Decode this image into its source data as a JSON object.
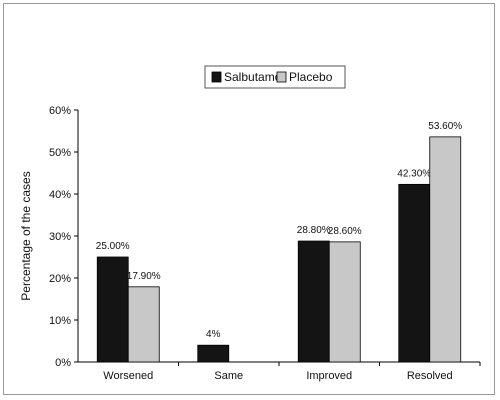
{
  "chart_data": {
    "type": "bar",
    "title": "",
    "xlabel": "",
    "ylabel": "Percentage of the cases",
    "ylim": [
      0,
      60
    ],
    "yticks": [
      "0%",
      "10%",
      "20%",
      "30%",
      "40%",
      "50%",
      "60%"
    ],
    "categories": [
      "Worsened",
      "Same",
      "Improved",
      "Resolved"
    ],
    "series": [
      {
        "name": "Salbutamol",
        "color": "#141414",
        "values": [
          25.0,
          4.0,
          28.8,
          42.3
        ],
        "labels": [
          "25.00%",
          "4%",
          "28.80%",
          "42.30%"
        ]
      },
      {
        "name": "Placebo",
        "color": "#c8c8c8",
        "values": [
          17.9,
          0,
          28.6,
          53.6
        ],
        "labels": [
          "17.90%",
          "",
          "28.60%",
          "53.60%"
        ]
      }
    ],
    "legend_position": "top-center",
    "grid": false
  }
}
